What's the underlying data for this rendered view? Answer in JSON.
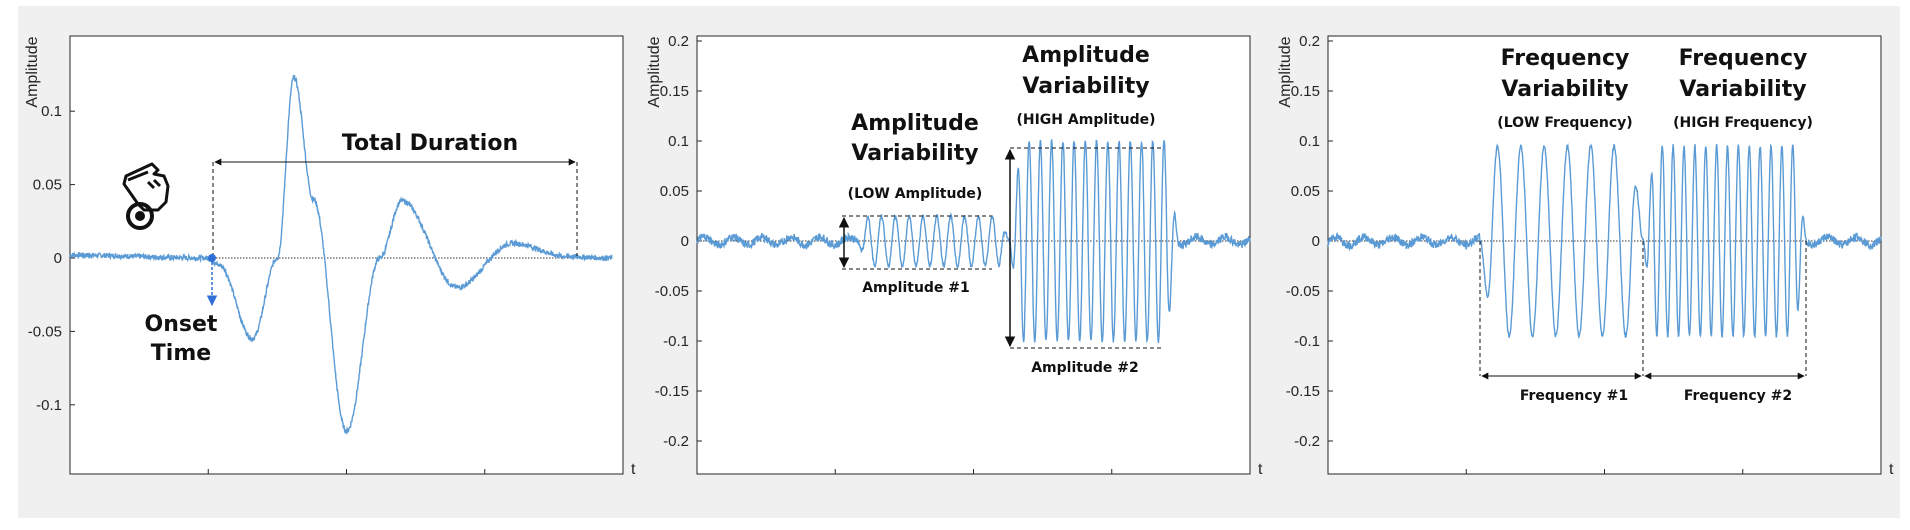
{
  "chart_data": [
    {
      "type": "line",
      "xlabel": "t",
      "ylabel": "Amplitude",
      "ylim": [
        -0.12,
        0.125
      ],
      "yticks": [
        0.1,
        0.05,
        0,
        -0.05,
        -0.1
      ],
      "ytick_labels": [
        "0.1",
        "0.05",
        "0",
        "-0.05",
        "-0.1"
      ],
      "grid": false,
      "series_color": "#5b9bd5",
      "description_waveform": [
        {
          "t": 0.0,
          "y": 0.002
        },
        {
          "t": 0.25,
          "y": 0.0
        },
        {
          "t": 0.27,
          "y": -0.005
        },
        {
          "t": 0.33,
          "y": -0.055
        },
        {
          "t": 0.375,
          "y": 0.0
        },
        {
          "t": 0.405,
          "y": 0.123
        },
        {
          "t": 0.44,
          "y": 0.04
        },
        {
          "t": 0.5,
          "y": -0.118
        },
        {
          "t": 0.56,
          "y": 0.0
        },
        {
          "t": 0.6,
          "y": 0.039
        },
        {
          "t": 0.7,
          "y": -0.02
        },
        {
          "t": 0.8,
          "y": 0.01
        },
        {
          "t": 0.9,
          "y": 0.001
        },
        {
          "t": 0.98,
          "y": 0.0
        }
      ],
      "annotations": {
        "total_duration": "Total Duration",
        "onset_line1": "Onset",
        "onset_line2": "Time"
      }
    },
    {
      "type": "line",
      "xlabel": "t",
      "ylabel": "Amplitude",
      "ylim": [
        -0.225,
        0.205
      ],
      "yticks": [
        0.2,
        0.15,
        0.1,
        0.05,
        0,
        -0.05,
        -0.1,
        -0.15,
        -0.2
      ],
      "ytick_labels": [
        "0.2",
        "0.15",
        "0.1",
        "0.05",
        "0",
        "-0.05",
        "-0.1",
        "-0.15",
        "-0.2"
      ],
      "grid": false,
      "series_color": "#5b9bd5",
      "segments": [
        {
          "t_start": 0.29,
          "t_end": 0.565,
          "amplitude": 0.025,
          "cycles": 11
        },
        {
          "t_start": 0.565,
          "t_end": 0.87,
          "amplitude": 0.1,
          "cycles": 15
        }
      ],
      "annotations": {
        "low_title_1": "Amplitude",
        "low_title_2": "Variability",
        "low_sub": "(LOW Amplitude)",
        "low_label": "Amplitude #1",
        "high_title_1": "Amplitude",
        "high_title_2": "Variability",
        "high_sub": "(HIGH Amplitude)",
        "high_label": "Amplitude #2"
      }
    },
    {
      "type": "line",
      "xlabel": "t",
      "ylabel": "Amplitude",
      "ylim": [
        -0.225,
        0.205
      ],
      "yticks": [
        0.2,
        0.15,
        0.1,
        0.05,
        0,
        -0.05,
        -0.1,
        -0.15,
        -0.2
      ],
      "ytick_labels": [
        "0.2",
        "0.15",
        "0.1",
        "0.05",
        "0",
        "-0.05",
        "-0.1",
        "-0.15",
        "-0.2"
      ],
      "grid": false,
      "series_color": "#5b9bd5",
      "segments": [
        {
          "t_start": 0.275,
          "t_end": 0.57,
          "amplitude": 0.095,
          "cycles": 7
        },
        {
          "t_start": 0.57,
          "t_end": 0.865,
          "amplitude": 0.095,
          "cycles": 15
        }
      ],
      "annotations": {
        "low_title_1": "Frequency",
        "low_title_2": "Variability",
        "low_sub": "(LOW Frequency)",
        "low_label": "Frequency #1",
        "high_title_1": "Frequency",
        "high_title_2": "Variability",
        "high_sub": "(HIGH Frequency)",
        "high_label": "Frequency #2"
      }
    }
  ]
}
